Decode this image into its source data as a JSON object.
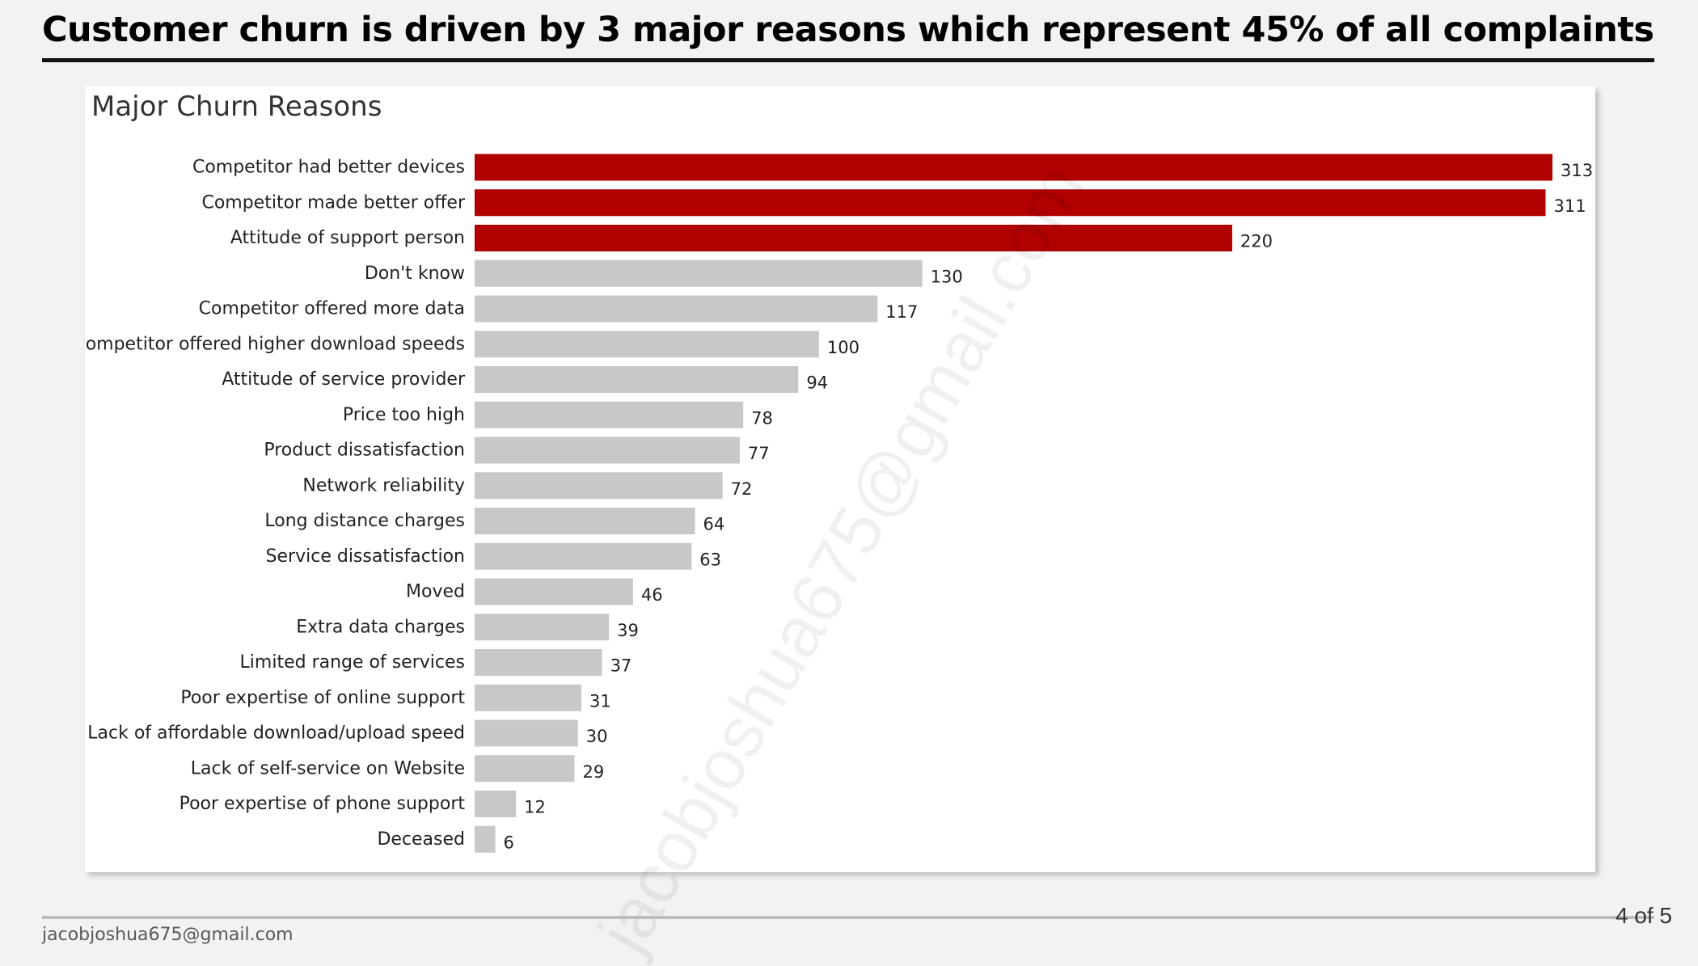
{
  "slide": {
    "title": "Customer churn is driven by 3 major reasons which represent 45% of all complaints",
    "footer_email": "jacobjoshua675@gmail.com",
    "page_number": "4 of 5",
    "watermark": "jacobjoshua675@gmail.com"
  },
  "colors": {
    "highlight": "#b00000",
    "default_bar": "#c8c8c8",
    "label": "#222222"
  },
  "chart_data": {
    "type": "bar",
    "orientation": "horizontal",
    "title": "Major Churn Reasons",
    "categories": [
      "Competitor had better devices",
      "Competitor made better offer",
      "Attitude of support person",
      "Don't know",
      "Competitor offered more data",
      "Competitor offered higher download speeds",
      "Attitude of service provider",
      "Price too high",
      "Product dissatisfaction",
      "Network reliability",
      "Long distance charges",
      "Service dissatisfaction",
      "Moved",
      "Extra data charges",
      "Limited range of services",
      "Poor expertise of online support",
      "Lack of affordable download/upload speed",
      "Lack of self-service on Website",
      "Poor expertise of phone support",
      "Deceased"
    ],
    "values": [
      313,
      311,
      220,
      130,
      117,
      100,
      94,
      78,
      77,
      72,
      64,
      63,
      46,
      39,
      37,
      31,
      30,
      29,
      12,
      6
    ],
    "highlighted": [
      true,
      true,
      true,
      false,
      false,
      false,
      false,
      false,
      false,
      false,
      false,
      false,
      false,
      false,
      false,
      false,
      false,
      false,
      false,
      false
    ],
    "data_labels": true,
    "xlim": [
      0,
      313
    ],
    "axes_visible": false,
    "grid": false,
    "legend": "none"
  }
}
